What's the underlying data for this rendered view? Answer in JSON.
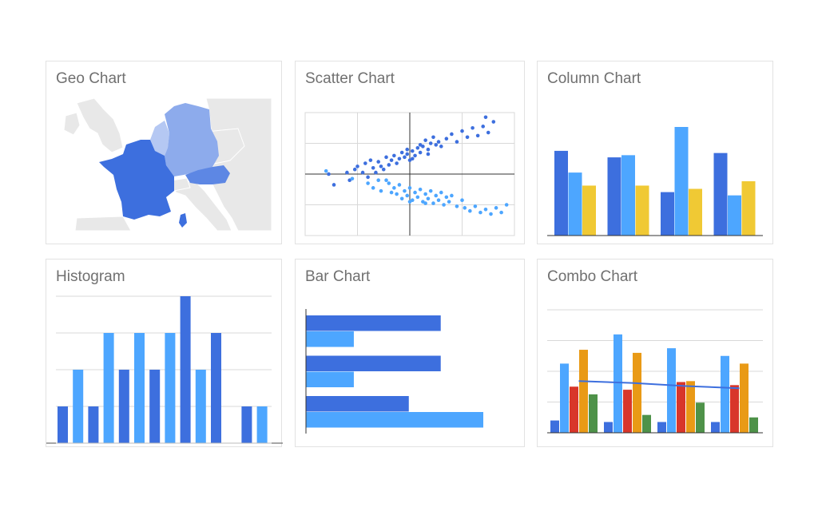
{
  "colors": {
    "dark_blue": "#3d6fde",
    "light_blue": "#4da6ff",
    "yellow": "#f0c934",
    "red": "#d8362a",
    "orange": "#e99a16",
    "green": "#4e9249",
    "map_land": "#e8e8e8",
    "map_border": "#ffffff",
    "grid": "#d8d8d8",
    "axis": "#333333"
  },
  "chart_data": [
    {
      "id": "geo",
      "type": "map",
      "title": "Geo Chart",
      "regions": [
        {
          "name": "France",
          "level": 1.0
        },
        {
          "name": "Austria",
          "level": 0.8
        },
        {
          "name": "Germany",
          "level": 0.5
        },
        {
          "name": "Benelux",
          "level": 0.25
        }
      ]
    },
    {
      "id": "scatter",
      "type": "scatter",
      "title": "Scatter Chart",
      "xlim": [
        -2,
        2
      ],
      "ylim": [
        -2,
        2
      ],
      "grid": true,
      "series": [
        {
          "color": "dark_blue",
          "points": [
            [
              -1.55,
              0.0
            ],
            [
              -1.45,
              -0.35
            ],
            [
              -1.2,
              0.05
            ],
            [
              -1.15,
              -0.2
            ],
            [
              -1.05,
              0.15
            ],
            [
              -1.0,
              0.25
            ],
            [
              -0.9,
              0.05
            ],
            [
              -0.85,
              0.35
            ],
            [
              -0.8,
              -0.1
            ],
            [
              -0.75,
              0.45
            ],
            [
              -0.7,
              0.2
            ],
            [
              -0.65,
              0.05
            ],
            [
              -0.6,
              0.4
            ],
            [
              -0.55,
              0.25
            ],
            [
              -0.5,
              0.15
            ],
            [
              -0.45,
              0.55
            ],
            [
              -0.4,
              0.3
            ],
            [
              -0.35,
              0.45
            ],
            [
              -0.3,
              0.6
            ],
            [
              -0.25,
              0.35
            ],
            [
              -0.2,
              0.5
            ],
            [
              -0.15,
              0.7
            ],
            [
              -0.1,
              0.55
            ],
            [
              -0.05,
              0.65
            ],
            [
              0.0,
              0.45
            ],
            [
              0.05,
              0.75
            ],
            [
              0.1,
              0.6
            ],
            [
              0.15,
              0.85
            ],
            [
              0.2,
              0.7
            ],
            [
              0.25,
              0.9
            ],
            [
              0.3,
              1.1
            ],
            [
              0.35,
              0.8
            ],
            [
              0.4,
              1.0
            ],
            [
              0.45,
              1.2
            ],
            [
              0.5,
              0.95
            ],
            [
              0.55,
              1.05
            ],
            [
              0.6,
              0.9
            ],
            [
              0.7,
              1.15
            ],
            [
              0.8,
              1.3
            ],
            [
              0.9,
              1.05
            ],
            [
              1.0,
              1.4
            ],
            [
              1.1,
              1.2
            ],
            [
              1.2,
              1.5
            ],
            [
              1.3,
              1.25
            ],
            [
              1.4,
              1.55
            ],
            [
              1.5,
              1.35
            ],
            [
              1.6,
              1.7
            ],
            [
              1.45,
              1.85
            ],
            [
              0.05,
              0.5
            ],
            [
              0.2,
              0.95
            ],
            [
              -0.05,
              0.8
            ],
            [
              0.35,
              0.65
            ]
          ]
        },
        {
          "color": "light_blue",
          "points": [
            [
              -1.6,
              0.1
            ],
            [
              -1.1,
              -0.15
            ],
            [
              -0.8,
              -0.3
            ],
            [
              -0.7,
              -0.45
            ],
            [
              -0.6,
              -0.2
            ],
            [
              -0.55,
              -0.55
            ],
            [
              -0.4,
              -0.3
            ],
            [
              -0.3,
              -0.45
            ],
            [
              -0.25,
              -0.65
            ],
            [
              -0.2,
              -0.35
            ],
            [
              -0.15,
              -0.8
            ],
            [
              -0.1,
              -0.55
            ],
            [
              -0.05,
              -0.7
            ],
            [
              0.0,
              -0.45
            ],
            [
              0.05,
              -0.85
            ],
            [
              0.1,
              -0.6
            ],
            [
              0.15,
              -0.75
            ],
            [
              0.2,
              -0.5
            ],
            [
              0.25,
              -0.9
            ],
            [
              0.3,
              -0.65
            ],
            [
              0.35,
              -0.8
            ],
            [
              0.4,
              -0.55
            ],
            [
              0.45,
              -0.95
            ],
            [
              0.5,
              -0.7
            ],
            [
              0.55,
              -0.85
            ],
            [
              0.6,
              -0.6
            ],
            [
              0.65,
              -1.0
            ],
            [
              0.7,
              -0.75
            ],
            [
              0.75,
              -0.9
            ],
            [
              0.8,
              -0.7
            ],
            [
              0.9,
              -1.05
            ],
            [
              1.0,
              -0.85
            ],
            [
              1.05,
              -1.1
            ],
            [
              1.15,
              -1.2
            ],
            [
              1.25,
              -1.05
            ],
            [
              1.35,
              -1.25
            ],
            [
              1.45,
              -1.15
            ],
            [
              1.55,
              -1.3
            ],
            [
              1.65,
              -1.1
            ],
            [
              1.75,
              -1.25
            ],
            [
              1.85,
              -1.0
            ],
            [
              -0.45,
              -0.2
            ],
            [
              -0.35,
              -0.6
            ],
            [
              0.0,
              -0.9
            ],
            [
              0.3,
              -0.95
            ]
          ]
        }
      ]
    },
    {
      "id": "column",
      "type": "bar",
      "title": "Column Chart",
      "ylim": [
        0,
        10
      ],
      "series": [
        {
          "color": "dark_blue",
          "values": [
            7.8,
            7.2,
            4.0,
            7.6
          ]
        },
        {
          "color": "light_blue",
          "values": [
            5.8,
            7.4,
            10.0,
            3.7
          ]
        },
        {
          "color": "yellow",
          "values": [
            4.6,
            4.6,
            4.3,
            5.0
          ]
        }
      ]
    },
    {
      "id": "histogram",
      "type": "bar",
      "title": "Histogram",
      "ylim": [
        0,
        4
      ],
      "values": [
        1,
        2,
        1,
        3,
        2,
        3,
        2,
        3,
        4,
        2,
        3,
        0,
        1,
        1
      ],
      "bar_colors": [
        "dark_blue",
        "light_blue",
        "dark_blue",
        "light_blue",
        "dark_blue",
        "light_blue",
        "dark_blue",
        "light_blue",
        "dark_blue",
        "light_blue",
        "dark_blue",
        "light_blue",
        "dark_blue",
        "light_blue"
      ]
    },
    {
      "id": "bar",
      "type": "bar",
      "orientation": "horizontal",
      "title": "Bar Chart",
      "xlim": [
        0,
        10
      ],
      "groups": [
        {
          "dark": 7.6,
          "light": 2.7
        },
        {
          "dark": 7.6,
          "light": 2.7
        },
        {
          "dark": 5.8,
          "light": 10.0
        }
      ]
    },
    {
      "id": "combo",
      "type": "bar",
      "title": "Combo Chart",
      "ylim": [
        0,
        40
      ],
      "grid": true,
      "series": [
        {
          "color": "dark_blue",
          "values": [
            4,
            3.5,
            3.5,
            3.5
          ]
        },
        {
          "color": "light_blue",
          "values": [
            22.5,
            32,
            27.5,
            25
          ]
        },
        {
          "color": "red",
          "values": [
            15,
            14,
            16.5,
            15.5
          ]
        },
        {
          "color": "orange",
          "values": [
            27,
            26,
            16.8,
            22.5
          ]
        },
        {
          "color": "green",
          "values": [
            12.5,
            5.8,
            9.8,
            5
          ]
        }
      ],
      "line": {
        "color": "dark_blue",
        "values": [
          16.8,
          16.2,
          15.2,
          14.5
        ]
      }
    }
  ]
}
